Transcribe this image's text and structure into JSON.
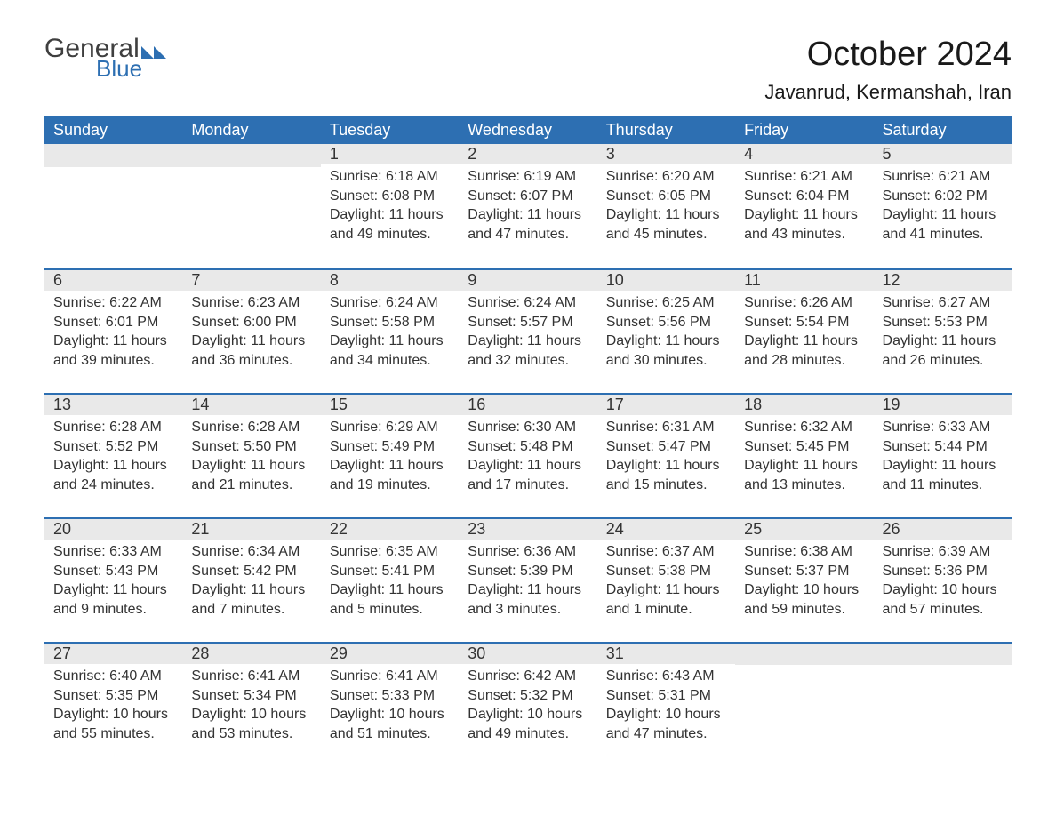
{
  "logo": {
    "text_general": "General",
    "text_blue": "Blue",
    "shape_color": "#2d6fb2",
    "gray": "#3f3f3f"
  },
  "header": {
    "month_title": "October 2024",
    "location": "Javanrud, Kermanshah, Iran"
  },
  "style": {
    "header_bg": "#2d6fb2",
    "daynum_bg": "#e9e9e9",
    "text_color": "#333333",
    "body_fontsize": 16,
    "title_fontsize": 38,
    "location_fontsize": 22,
    "weekday_fontsize": 18
  },
  "weekdays": [
    "Sunday",
    "Monday",
    "Tuesday",
    "Wednesday",
    "Thursday",
    "Friday",
    "Saturday"
  ],
  "weeks": [
    [
      {
        "blank": true
      },
      {
        "blank": true
      },
      {
        "day": "1",
        "sunrise": "Sunrise: 6:18 AM",
        "sunset": "Sunset: 6:08 PM",
        "daylight": "Daylight: 11 hours and 49 minutes."
      },
      {
        "day": "2",
        "sunrise": "Sunrise: 6:19 AM",
        "sunset": "Sunset: 6:07 PM",
        "daylight": "Daylight: 11 hours and 47 minutes."
      },
      {
        "day": "3",
        "sunrise": "Sunrise: 6:20 AM",
        "sunset": "Sunset: 6:05 PM",
        "daylight": "Daylight: 11 hours and 45 minutes."
      },
      {
        "day": "4",
        "sunrise": "Sunrise: 6:21 AM",
        "sunset": "Sunset: 6:04 PM",
        "daylight": "Daylight: 11 hours and 43 minutes."
      },
      {
        "day": "5",
        "sunrise": "Sunrise: 6:21 AM",
        "sunset": "Sunset: 6:02 PM",
        "daylight": "Daylight: 11 hours and 41 minutes."
      }
    ],
    [
      {
        "day": "6",
        "sunrise": "Sunrise: 6:22 AM",
        "sunset": "Sunset: 6:01 PM",
        "daylight": "Daylight: 11 hours and 39 minutes."
      },
      {
        "day": "7",
        "sunrise": "Sunrise: 6:23 AM",
        "sunset": "Sunset: 6:00 PM",
        "daylight": "Daylight: 11 hours and 36 minutes."
      },
      {
        "day": "8",
        "sunrise": "Sunrise: 6:24 AM",
        "sunset": "Sunset: 5:58 PM",
        "daylight": "Daylight: 11 hours and 34 minutes."
      },
      {
        "day": "9",
        "sunrise": "Sunrise: 6:24 AM",
        "sunset": "Sunset: 5:57 PM",
        "daylight": "Daylight: 11 hours and 32 minutes."
      },
      {
        "day": "10",
        "sunrise": "Sunrise: 6:25 AM",
        "sunset": "Sunset: 5:56 PM",
        "daylight": "Daylight: 11 hours and 30 minutes."
      },
      {
        "day": "11",
        "sunrise": "Sunrise: 6:26 AM",
        "sunset": "Sunset: 5:54 PM",
        "daylight": "Daylight: 11 hours and 28 minutes."
      },
      {
        "day": "12",
        "sunrise": "Sunrise: 6:27 AM",
        "sunset": "Sunset: 5:53 PM",
        "daylight": "Daylight: 11 hours and 26 minutes."
      }
    ],
    [
      {
        "day": "13",
        "sunrise": "Sunrise: 6:28 AM",
        "sunset": "Sunset: 5:52 PM",
        "daylight": "Daylight: 11 hours and 24 minutes."
      },
      {
        "day": "14",
        "sunrise": "Sunrise: 6:28 AM",
        "sunset": "Sunset: 5:50 PM",
        "daylight": "Daylight: 11 hours and 21 minutes."
      },
      {
        "day": "15",
        "sunrise": "Sunrise: 6:29 AM",
        "sunset": "Sunset: 5:49 PM",
        "daylight": "Daylight: 11 hours and 19 minutes."
      },
      {
        "day": "16",
        "sunrise": "Sunrise: 6:30 AM",
        "sunset": "Sunset: 5:48 PM",
        "daylight": "Daylight: 11 hours and 17 minutes."
      },
      {
        "day": "17",
        "sunrise": "Sunrise: 6:31 AM",
        "sunset": "Sunset: 5:47 PM",
        "daylight": "Daylight: 11 hours and 15 minutes."
      },
      {
        "day": "18",
        "sunrise": "Sunrise: 6:32 AM",
        "sunset": "Sunset: 5:45 PM",
        "daylight": "Daylight: 11 hours and 13 minutes."
      },
      {
        "day": "19",
        "sunrise": "Sunrise: 6:33 AM",
        "sunset": "Sunset: 5:44 PM",
        "daylight": "Daylight: 11 hours and 11 minutes."
      }
    ],
    [
      {
        "day": "20",
        "sunrise": "Sunrise: 6:33 AM",
        "sunset": "Sunset: 5:43 PM",
        "daylight": "Daylight: 11 hours and 9 minutes."
      },
      {
        "day": "21",
        "sunrise": "Sunrise: 6:34 AM",
        "sunset": "Sunset: 5:42 PM",
        "daylight": "Daylight: 11 hours and 7 minutes."
      },
      {
        "day": "22",
        "sunrise": "Sunrise: 6:35 AM",
        "sunset": "Sunset: 5:41 PM",
        "daylight": "Daylight: 11 hours and 5 minutes."
      },
      {
        "day": "23",
        "sunrise": "Sunrise: 6:36 AM",
        "sunset": "Sunset: 5:39 PM",
        "daylight": "Daylight: 11 hours and 3 minutes."
      },
      {
        "day": "24",
        "sunrise": "Sunrise: 6:37 AM",
        "sunset": "Sunset: 5:38 PM",
        "daylight": "Daylight: 11 hours and 1 minute."
      },
      {
        "day": "25",
        "sunrise": "Sunrise: 6:38 AM",
        "sunset": "Sunset: 5:37 PM",
        "daylight": "Daylight: 10 hours and 59 minutes."
      },
      {
        "day": "26",
        "sunrise": "Sunrise: 6:39 AM",
        "sunset": "Sunset: 5:36 PM",
        "daylight": "Daylight: 10 hours and 57 minutes."
      }
    ],
    [
      {
        "day": "27",
        "sunrise": "Sunrise: 6:40 AM",
        "sunset": "Sunset: 5:35 PM",
        "daylight": "Daylight: 10 hours and 55 minutes."
      },
      {
        "day": "28",
        "sunrise": "Sunrise: 6:41 AM",
        "sunset": "Sunset: 5:34 PM",
        "daylight": "Daylight: 10 hours and 53 minutes."
      },
      {
        "day": "29",
        "sunrise": "Sunrise: 6:41 AM",
        "sunset": "Sunset: 5:33 PM",
        "daylight": "Daylight: 10 hours and 51 minutes."
      },
      {
        "day": "30",
        "sunrise": "Sunrise: 6:42 AM",
        "sunset": "Sunset: 5:32 PM",
        "daylight": "Daylight: 10 hours and 49 minutes."
      },
      {
        "day": "31",
        "sunrise": "Sunrise: 6:43 AM",
        "sunset": "Sunset: 5:31 PM",
        "daylight": "Daylight: 10 hours and 47 minutes."
      },
      {
        "blank": true
      },
      {
        "blank": true
      }
    ]
  ]
}
